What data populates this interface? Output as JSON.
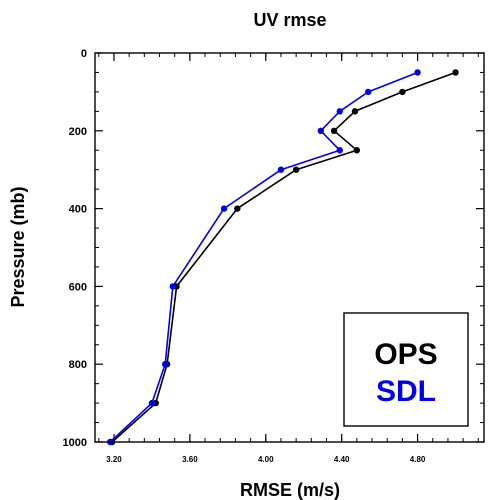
{
  "chart_data": {
    "type": "line",
    "title": "UV rmse",
    "xlabel": "RMSE (m/s)",
    "ylabel": "Pressure (mb)",
    "xlim": [
      3.1,
      5.15
    ],
    "ylim": [
      1000,
      0
    ],
    "y_inverted": true,
    "xticks": [
      3.2,
      3.6,
      4.0,
      4.4,
      4.8
    ],
    "xtick_labels": [
      "3.20",
      "3.60",
      "4.00",
      "4.40",
      "4.80"
    ],
    "yticks": [
      0,
      200,
      400,
      600,
      800,
      1000
    ],
    "ytick_labels": [
      "0",
      "200",
      "400",
      "600",
      "800",
      "1000"
    ],
    "legend": {
      "placement": "bottom-right",
      "entries": [
        {
          "label": "OPS",
          "color": "#000000"
        },
        {
          "label": "SDL",
          "color": "#0000ee"
        }
      ]
    },
    "series": [
      {
        "name": "OPS",
        "color": "#000000",
        "x": [
          5.0,
          4.72,
          4.47,
          4.36,
          4.48,
          4.16,
          3.85,
          3.53,
          3.48,
          3.42,
          3.19
        ],
        "y": [
          50,
          100,
          150,
          200,
          250,
          300,
          400,
          600,
          800,
          900,
          1000
        ]
      },
      {
        "name": "SDL",
        "color": "#0000ee",
        "x": [
          4.8,
          4.54,
          4.39,
          4.29,
          4.39,
          4.08,
          3.78,
          3.51,
          3.47,
          3.4,
          3.18
        ],
        "y": [
          50,
          100,
          150,
          200,
          250,
          300,
          400,
          600,
          800,
          900,
          1000
        ]
      }
    ]
  }
}
